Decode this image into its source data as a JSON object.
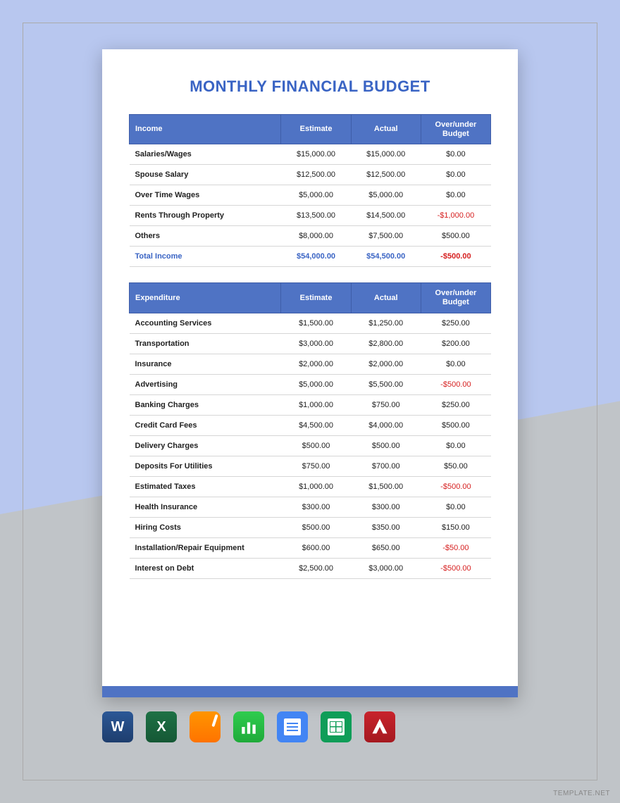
{
  "title": "MONTHLY FINANCIAL BUDGET",
  "colors": {
    "header_bg": "#4f73c4",
    "title_color": "#3a64c4",
    "negative_color": "#d62020",
    "page_bg": "#ffffff",
    "outer_blue": "#b8c7ef",
    "outer_gray": "#c0c4c8",
    "row_border": "#d6d6d6"
  },
  "income": {
    "headers": [
      "Income",
      "Estimate",
      "Actual",
      "Over/under Budget"
    ],
    "rows": [
      {
        "label": "Salaries/Wages",
        "estimate": "$15,000.00",
        "actual": "$15,000.00",
        "diff": "$0.00",
        "neg": false
      },
      {
        "label": "Spouse Salary",
        "estimate": "$12,500.00",
        "actual": "$12,500.00",
        "diff": "$0.00",
        "neg": false
      },
      {
        "label": "Over Time Wages",
        "estimate": "$5,000.00",
        "actual": "$5,000.00",
        "diff": "$0.00",
        "neg": false
      },
      {
        "label": "Rents Through Property",
        "estimate": "$13,500.00",
        "actual": "$14,500.00",
        "diff": "-$1,000.00",
        "neg": true
      },
      {
        "label": "Others",
        "estimate": "$8,000.00",
        "actual": "$7,500.00",
        "diff": "$500.00",
        "neg": false
      }
    ],
    "total": {
      "label": "Total Income",
      "estimate": "$54,000.00",
      "actual": "$54,500.00",
      "diff": "-$500.00",
      "neg": true
    }
  },
  "expenditure": {
    "headers": [
      "Expenditure",
      "Estimate",
      "Actual",
      "Over/under Budget"
    ],
    "rows": [
      {
        "label": "Accounting Services",
        "estimate": "$1,500.00",
        "actual": "$1,250.00",
        "diff": "$250.00",
        "neg": false
      },
      {
        "label": "Transportation",
        "estimate": "$3,000.00",
        "actual": "$2,800.00",
        "diff": "$200.00",
        "neg": false
      },
      {
        "label": "Insurance",
        "estimate": "$2,000.00",
        "actual": "$2,000.00",
        "diff": "$0.00",
        "neg": false
      },
      {
        "label": "Advertising",
        "estimate": "$5,000.00",
        "actual": "$5,500.00",
        "diff": "-$500.00",
        "neg": true
      },
      {
        "label": "Banking Charges",
        "estimate": "$1,000.00",
        "actual": "$750.00",
        "diff": "$250.00",
        "neg": false
      },
      {
        "label": "Credit Card Fees",
        "estimate": "$4,500.00",
        "actual": "$4,000.00",
        "diff": "$500.00",
        "neg": false
      },
      {
        "label": "Delivery Charges",
        "estimate": "$500.00",
        "actual": "$500.00",
        "diff": "$0.00",
        "neg": false
      },
      {
        "label": "Deposits For Utilities",
        "estimate": "$750.00",
        "actual": "$700.00",
        "diff": "$50.00",
        "neg": false
      },
      {
        "label": "Estimated Taxes",
        "estimate": "$1,000.00",
        "actual": "$1,500.00",
        "diff": "-$500.00",
        "neg": true
      },
      {
        "label": "Health Insurance",
        "estimate": "$300.00",
        "actual": "$300.00",
        "diff": "$0.00",
        "neg": false
      },
      {
        "label": "Hiring Costs",
        "estimate": "$500.00",
        "actual": "$350.00",
        "diff": "$150.00",
        "neg": false
      },
      {
        "label": "Installation/Repair Equipment",
        "estimate": "$600.00",
        "actual": "$650.00",
        "diff": "-$50.00",
        "neg": true
      },
      {
        "label": "Interest on Debt",
        "estimate": "$2,500.00",
        "actual": "$3,000.00",
        "diff": "-$500.00",
        "neg": true
      }
    ]
  },
  "app_icons": [
    {
      "name": "word-icon",
      "label": "W"
    },
    {
      "name": "excel-icon",
      "label": "X"
    },
    {
      "name": "pages-icon",
      "label": ""
    },
    {
      "name": "numbers-icon",
      "label": ""
    },
    {
      "name": "gdocs-icon",
      "label": ""
    },
    {
      "name": "gsheets-icon",
      "label": ""
    },
    {
      "name": "pdf-icon",
      "label": "A"
    }
  ],
  "watermark": "TEMPLATE.NET"
}
